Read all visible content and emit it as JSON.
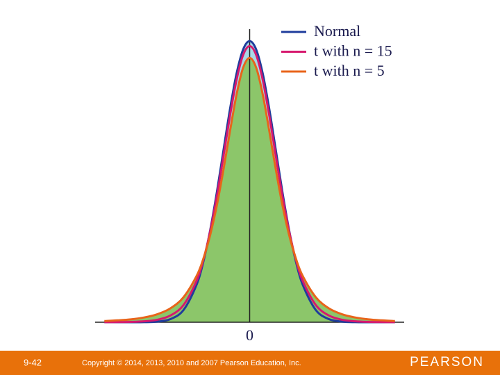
{
  "chart_data": {
    "type": "line",
    "x": [
      -5.5,
      -5,
      -4.5,
      -4,
      -3.5,
      -3,
      -2.5,
      -2,
      -1.75,
      -1.5,
      -1.25,
      -1,
      -0.75,
      -0.5,
      -0.25,
      0,
      0.25,
      0.5,
      0.75,
      1,
      1.25,
      1.5,
      1.75,
      2,
      2.5,
      3,
      3.5,
      4,
      4.5,
      5,
      5.5
    ],
    "series": [
      {
        "name": "Normal",
        "color": "#1f3c9c",
        "fill": "#a8d8e8",
        "values": [
          0,
          0,
          0,
          0.0001,
          0.0009,
          0.0044,
          0.0175,
          0.054,
          0.0863,
          0.1295,
          0.1826,
          0.242,
          0.3011,
          0.3521,
          0.3867,
          0.3989,
          0.3867,
          0.3521,
          0.3011,
          0.242,
          0.1826,
          0.1295,
          0.0863,
          0.054,
          0.0175,
          0.0044,
          0.0009,
          0.0001,
          0,
          0,
          0
        ]
      },
      {
        "name": "t with n = 15",
        "color": "#d6186e",
        "values": [
          0.0001,
          0.0002,
          0.0005,
          0.0013,
          0.0035,
          0.0095,
          0.0246,
          0.0595,
          0.0888,
          0.1281,
          0.1771,
          0.2335,
          0.2915,
          0.343,
          0.3788,
          0.3917,
          0.3788,
          0.343,
          0.2915,
          0.2335,
          0.1771,
          0.1281,
          0.0888,
          0.0595,
          0.0246,
          0.0095,
          0.0035,
          0.0013,
          0.0005,
          0.0002,
          0.0001
        ]
      },
      {
        "name": "t with n = 5",
        "color": "#e8641a",
        "fill": "#8cc66a",
        "values": [
          0.0017,
          0.0027,
          0.0041,
          0.0067,
          0.0113,
          0.0197,
          0.0357,
          0.0663,
          0.0905,
          0.1229,
          0.1644,
          0.2147,
          0.2699,
          0.3223,
          0.3608,
          0.375,
          0.3608,
          0.3223,
          0.2699,
          0.2147,
          0.1644,
          0.1229,
          0.0905,
          0.0663,
          0.0357,
          0.0197,
          0.0113,
          0.0067,
          0.0041,
          0.0027,
          0.0017
        ]
      }
    ],
    "xlim": [
      -5.85,
      5.85
    ],
    "ylim": [
      0,
      0.4
    ],
    "xticks": [
      0
    ]
  },
  "footer": {
    "slide_number": "9-42",
    "copyright": "Copyright © 2014, 2013, 2010 and 2007 Pearson Education, Inc.",
    "brand": "PEARSON",
    "color": "#e8710a"
  }
}
